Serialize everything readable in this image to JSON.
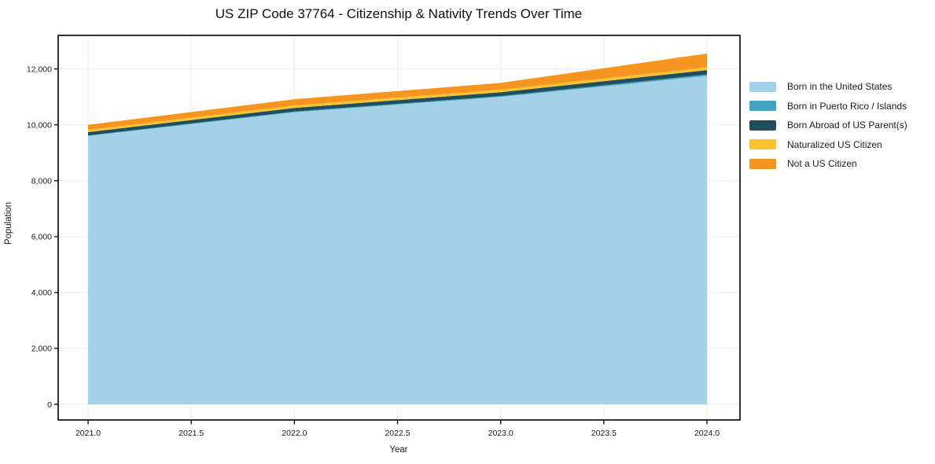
{
  "figure": {
    "title": "US ZIP Code 37764 - Citizenship & Nativity Trends Over Time",
    "xlabel": "Year",
    "ylabel": "Population"
  },
  "chart_data": {
    "type": "area",
    "stacked": true,
    "title": "US ZIP Code 37764 - Citizenship & Nativity Trends Over Time",
    "xlabel": "Year",
    "ylabel": "Population",
    "grid": true,
    "legend_position": "right-outside",
    "x": [
      2021,
      2022,
      2023,
      2024
    ],
    "series": [
      {
        "name": "Born in the United States",
        "color": "#a3d2e8",
        "values": [
          9600,
          10450,
          11000,
          11750
        ]
      },
      {
        "name": "Born in Puerto Rico / Islands",
        "color": "#41a4c0",
        "values": [
          20,
          25,
          30,
          55
        ]
      },
      {
        "name": "Born Abroad of US Parent(s)",
        "color": "#1f4e5c",
        "values": [
          120,
          130,
          135,
          150
        ]
      },
      {
        "name": "Naturalized US Citizen",
        "color": "#fdc22f",
        "values": [
          80,
          90,
          95,
          105
        ]
      },
      {
        "name": "Not a US Citizen",
        "color": "#f5941f",
        "values": [
          180,
          220,
          240,
          490
        ]
      }
    ],
    "stack_totals": [
      10000,
      10915,
      11500,
      12550
    ],
    "xlim": [
      2020.855,
      2024.16
    ],
    "ylim": [
      -560,
      13200
    ],
    "xticks": [
      2021.0,
      2021.5,
      2022.0,
      2022.5,
      2023.0,
      2023.5,
      2024.0
    ],
    "xtick_labels": [
      "2021.0",
      "2021.5",
      "2022.0",
      "2022.5",
      "2023.0",
      "2023.5",
      "2024.0"
    ],
    "yticks": [
      0,
      2000,
      4000,
      6000,
      8000,
      10000,
      12000
    ],
    "ytick_labels": [
      "0",
      "2,000",
      "4,000",
      "6,000",
      "8,000",
      "10,000",
      "12,000"
    ],
    "colors": {
      "grid": "#ededed",
      "axis": "#000000",
      "text": "#1a1a1a",
      "background": "#ffffff"
    }
  }
}
